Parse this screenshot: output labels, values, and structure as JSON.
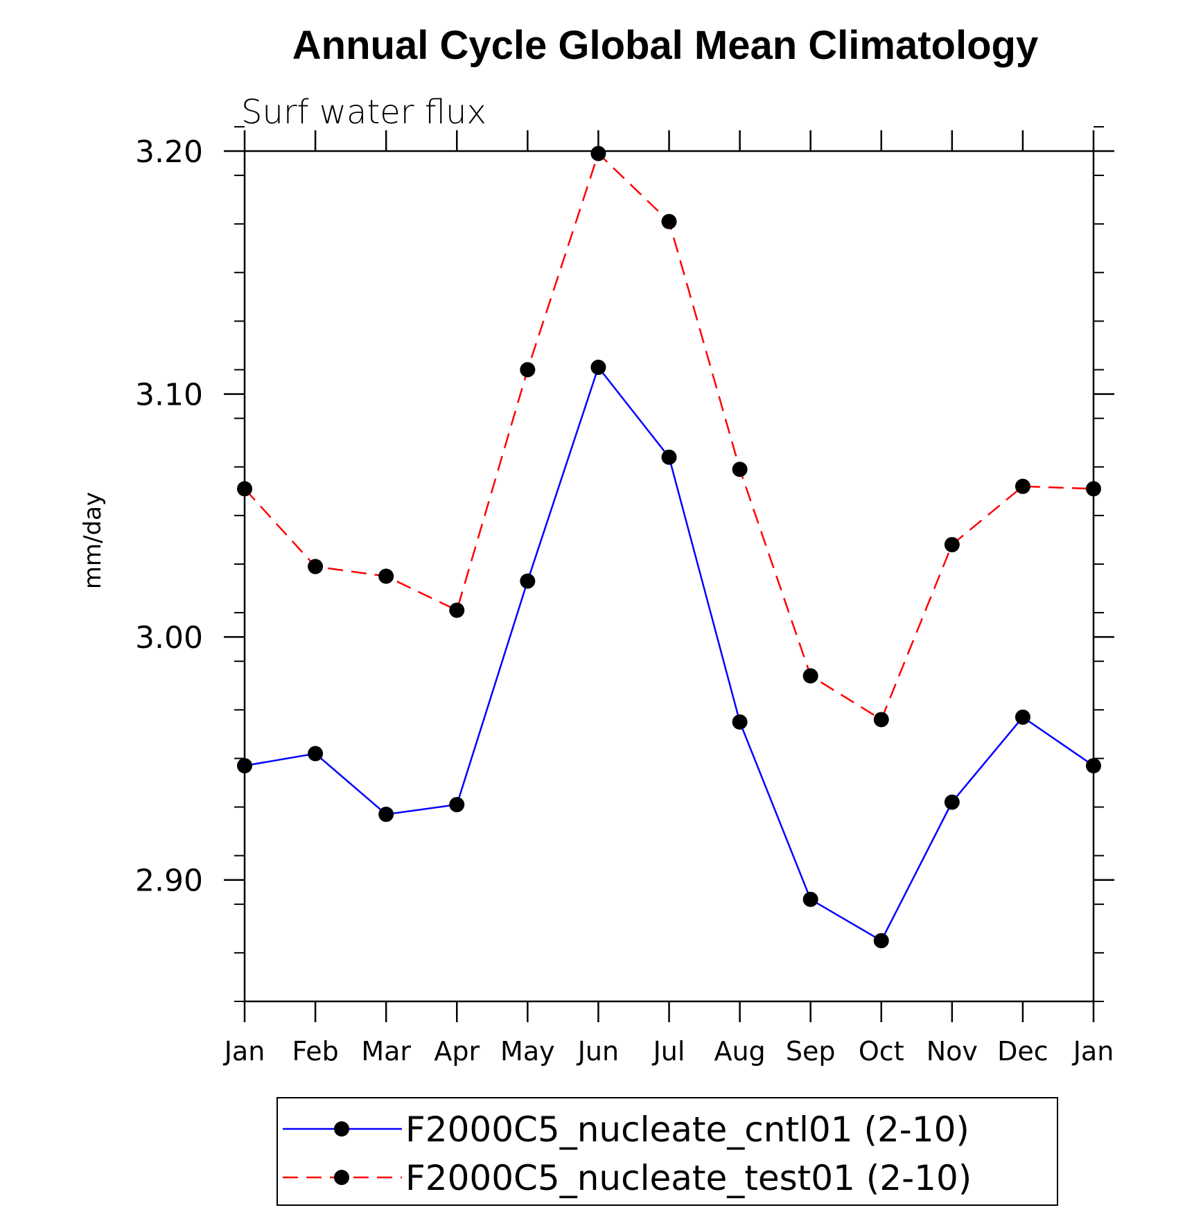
{
  "chart_data": {
    "type": "line",
    "title": "Annual Cycle Global Mean Climatology",
    "subtitle": "Surf water flux",
    "xlabel": "",
    "ylabel": "mm/day",
    "ylim": [
      2.85,
      3.2
    ],
    "yticks": [
      2.9,
      3.0,
      3.1,
      3.2
    ],
    "ytick_labels": [
      "2.90",
      "3.00",
      "3.10",
      "3.20"
    ],
    "y_minor_step": 0.02,
    "categories": [
      "Jan",
      "Feb",
      "Mar",
      "Apr",
      "May",
      "Jun",
      "Jul",
      "Aug",
      "Sep",
      "Oct",
      "Nov",
      "Dec",
      "Jan"
    ],
    "grid": false,
    "legend_position": "bottom",
    "series": [
      {
        "name": "F2000C5_nucleate_cntl01 (2-10)",
        "color": "#0000ff",
        "dash": "solid",
        "marker": "filled-circle",
        "values": [
          2.947,
          2.952,
          2.927,
          2.931,
          3.023,
          3.111,
          3.074,
          2.965,
          2.892,
          2.875,
          2.932,
          2.967,
          2.947
        ]
      },
      {
        "name": "F2000C5_nucleate_test01 (2-10)",
        "color": "#ff0000",
        "dash": "dashed",
        "marker": "filled-circle",
        "values": [
          3.061,
          3.029,
          3.025,
          3.011,
          3.11,
          3.199,
          3.171,
          3.069,
          2.984,
          2.966,
          3.038,
          3.062,
          3.061
        ]
      }
    ]
  }
}
